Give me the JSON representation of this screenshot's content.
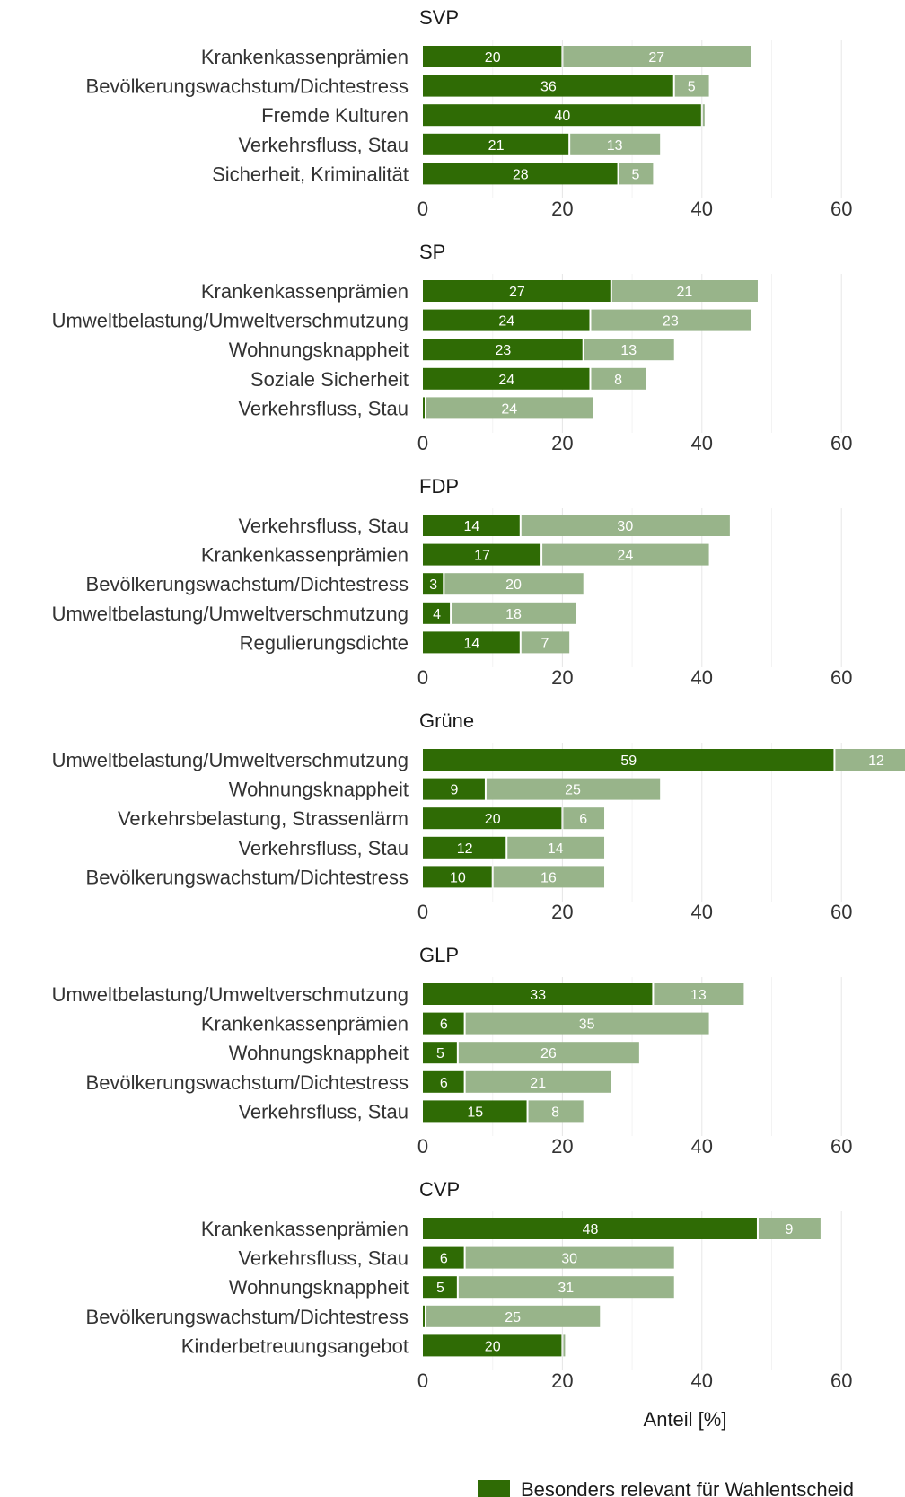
{
  "chart_data": {
    "type": "bar",
    "orientation": "horizontal",
    "stacked": true,
    "xlabel": "Anteil [%]",
    "xlim": [
      0,
      70
    ],
    "xticks": [
      0,
      20,
      40,
      60
    ],
    "grid": true,
    "legend_position": "bottom",
    "series": [
      {
        "key": "primary",
        "name": "Besonders relevant für Wahlentscheid",
        "color": "#2f6b05"
      },
      {
        "key": "secondary",
        "name": "",
        "color": "#98b48a"
      }
    ],
    "panels": [
      {
        "title": "SVP",
        "categories": [
          "Krankenkassenprämien",
          "Bevölkerungswachstum/Dichtestress",
          "Fremde Kulturen",
          "Verkehrsfluss, Stau",
          "Sicherheit, Kriminalität"
        ],
        "primary": [
          20,
          36,
          40,
          21,
          28
        ],
        "secondary": [
          27,
          5,
          0,
          13,
          5
        ]
      },
      {
        "title": "SP",
        "categories": [
          "Krankenkassenprämien",
          "Umweltbelastung/Umweltverschmutzung",
          "Wohnungsknappheit",
          "Soziale Sicherheit",
          "Verkehrsfluss, Stau"
        ],
        "primary": [
          27,
          24,
          23,
          24,
          0
        ],
        "secondary": [
          21,
          23,
          13,
          8,
          24
        ]
      },
      {
        "title": "FDP",
        "categories": [
          "Verkehrsfluss, Stau",
          "Krankenkassenprämien",
          "Bevölkerungswachstum/Dichtestress",
          "Umweltbelastung/Umweltverschmutzung",
          "Regulierungsdichte"
        ],
        "primary": [
          14,
          17,
          3,
          4,
          14
        ],
        "secondary": [
          30,
          24,
          20,
          18,
          7
        ]
      },
      {
        "title": "Grüne",
        "categories": [
          "Umweltbelastung/Umweltverschmutzung",
          "Wohnungsknappheit",
          "Verkehrsbelastung, Strassenlärm",
          "Verkehrsfluss, Stau",
          "Bevölkerungswachstum/Dichtestress"
        ],
        "primary": [
          59,
          9,
          20,
          12,
          10
        ],
        "secondary": [
          12,
          25,
          6,
          14,
          16
        ]
      },
      {
        "title": "GLP",
        "categories": [
          "Umweltbelastung/Umweltverschmutzung",
          "Krankenkassenprämien",
          "Wohnungsknappheit",
          "Bevölkerungswachstum/Dichtestress",
          "Verkehrsfluss, Stau"
        ],
        "primary": [
          33,
          6,
          5,
          6,
          15
        ],
        "secondary": [
          13,
          35,
          26,
          21,
          8
        ]
      },
      {
        "title": "CVP",
        "categories": [
          "Krankenkassenprämien",
          "Verkehrsfluss, Stau",
          "Wohnungsknappheit",
          "Bevölkerungswachstum/Dichtestress",
          "Kinderbetreuungsangebot"
        ],
        "primary": [
          48,
          6,
          5,
          0,
          20
        ],
        "secondary": [
          9,
          30,
          31,
          25,
          0
        ]
      }
    ]
  }
}
